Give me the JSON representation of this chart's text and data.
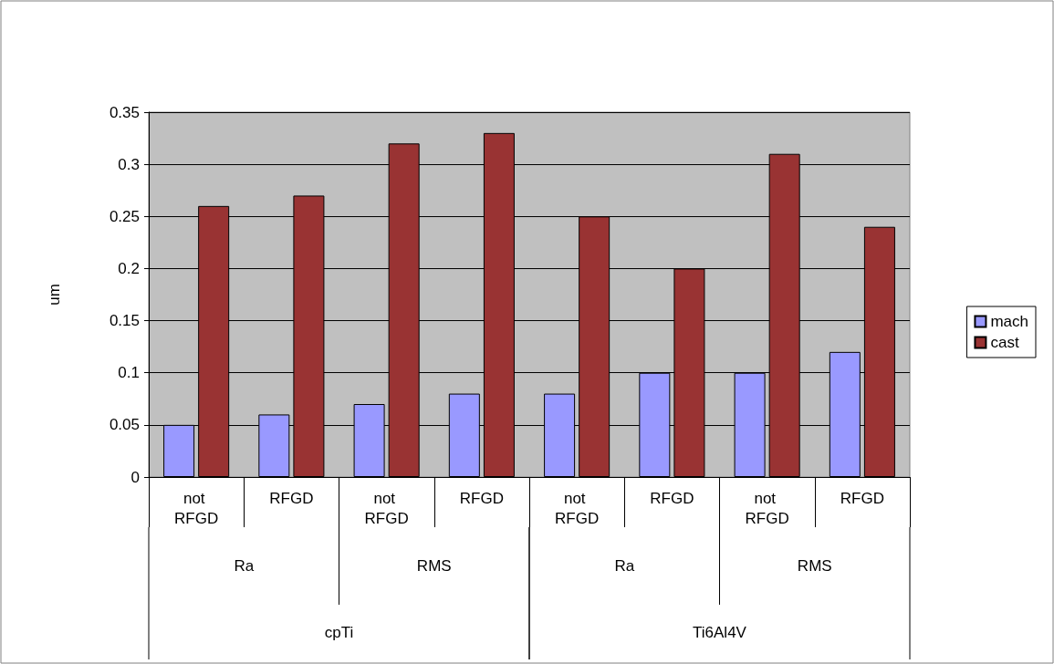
{
  "chart_data": {
    "type": "bar",
    "ylabel": "um",
    "categories": [
      "not RFGD",
      "RFGD",
      "not RFGD",
      "RFGD",
      "not RFGD",
      "RFGD",
      "not RFGD",
      "RFGD"
    ],
    "series": [
      {
        "name": "mach",
        "color": "#9999ff",
        "values": [
          0.05,
          0.06,
          0.07,
          0.08,
          0.08,
          0.1,
          0.1,
          0.12
        ]
      },
      {
        "name": "cast",
        "color": "#993333",
        "values": [
          0.26,
          0.27,
          0.32,
          0.33,
          0.25,
          0.2,
          0.31,
          0.24
        ]
      }
    ],
    "annotations": [
      "Ra",
      "RMS",
      "Ra",
      "RMS",
      "cpTi",
      "Ti6Al4V"
    ],
    "ylim": [
      0,
      0.35
    ],
    "yticks": [
      0,
      0.05,
      0.1,
      0.15,
      0.2,
      0.25,
      0.3,
      0.35
    ],
    "grid": "y",
    "legend": "right"
  }
}
